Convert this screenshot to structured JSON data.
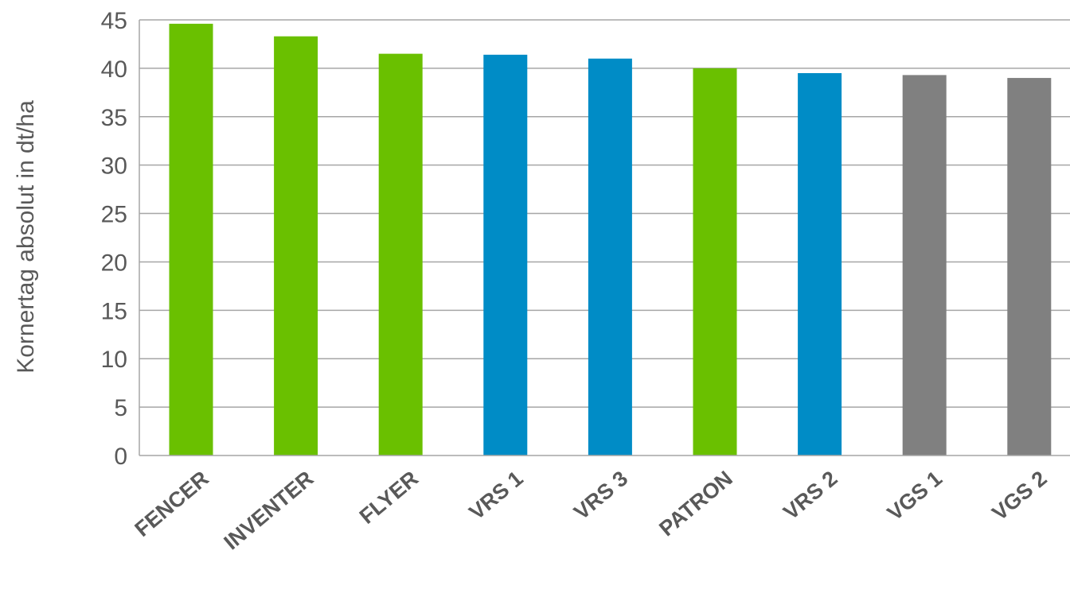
{
  "chart_data": {
    "type": "bar",
    "title": "",
    "xlabel": "",
    "ylabel": "Kornertag absolut in dt/ha",
    "ylim": [
      0,
      45
    ],
    "yticks": [
      0,
      5,
      10,
      15,
      20,
      25,
      30,
      35,
      40,
      45
    ],
    "grid": true,
    "legend": "none",
    "categories": [
      "FENCER",
      "INVENTER",
      "FLYER",
      "VRS 1",
      "VRS 3",
      "PATRON",
      "VRS 2",
      "VGS 1",
      "VGS 2"
    ],
    "values": [
      44.6,
      43.3,
      41.5,
      41.4,
      41.0,
      40.0,
      39.5,
      39.3,
      39.0
    ],
    "colors": [
      "#6ac000",
      "#6ac000",
      "#6ac000",
      "#008cc6",
      "#008cc6",
      "#6ac000",
      "#008cc6",
      "#808080",
      "#808080"
    ]
  }
}
